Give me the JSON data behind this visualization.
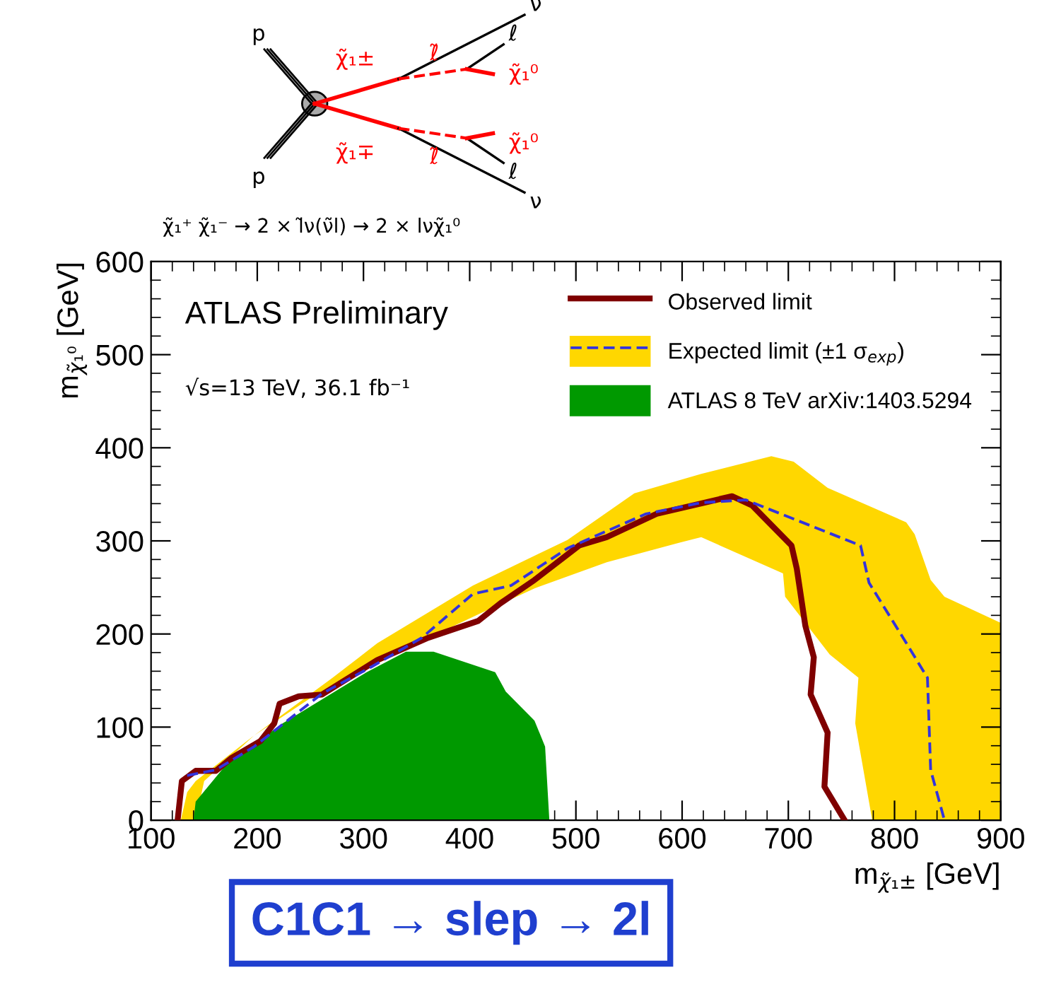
{
  "chart_data": {
    "type": "line",
    "xlabel": "m$_{χ̃₁±}$ [GeV]",
    "ylabel": "m$_{χ̃₁⁰}$ [GeV]",
    "xlim": [
      100,
      900
    ],
    "xticks": [
      100,
      200,
      300,
      400,
      500,
      600,
      700,
      800,
      900
    ],
    "ylim": [
      0,
      600
    ],
    "yticks": [
      0,
      100,
      200,
      300,
      400,
      500,
      600
    ],
    "legend": "top right",
    "grid": false,
    "series": [
      {
        "type": "area",
        "color": "#ffd700",
        "x": [
          128,
          134,
          142,
          197,
          271,
          313,
          403,
          492,
          555,
          618,
          684,
          705,
          737,
          811,
          819,
          834,
          847,
          900,
          900,
          779,
          763,
          766,
          739,
          697,
          695,
          618,
          597,
          529,
          461,
          408,
          345,
          250,
          197,
          150,
          142
        ],
        "values": [
          0,
          30,
          42,
          91,
          153,
          190,
          252,
          301,
          351,
          372,
          391,
          385,
          357,
          320,
          307,
          258,
          240,
          212,
          0,
          0,
          104,
          153,
          178,
          240,
          265,
          304,
          298,
          277,
          249,
          221,
          187,
          131,
          91,
          42,
          0
        ]
      },
      {
        "type": "area",
        "name": "ATLAS 8 TeV arXiv:1403.5294",
        "color": "#009900",
        "x": [
          140,
          142,
          171,
          224,
          303,
          340,
          366,
          408,
          424,
          434,
          461,
          471,
          475
        ],
        "values": [
          0,
          20,
          60,
          104,
          159,
          181,
          181,
          165,
          159,
          138,
          107,
          79,
          0
        ]
      },
      {
        "name": "Expected limit (±1 σ$_{exp}$)",
        "color": "#3333dd",
        "line_style": "dashed",
        "x": [
          134,
          161,
          197,
          261,
          308,
          355,
          403,
          439,
          492,
          566,
          618,
          660,
          768,
          776,
          808,
          831,
          834,
          847
        ],
        "values": [
          48,
          54,
          79,
          136,
          165,
          196,
          243,
          252,
          292,
          329,
          341,
          344,
          295,
          255,
          196,
          153,
          54,
          0
        ]
      },
      {
        "name": "Observed limit",
        "color": "#7f0000",
        "line_style": "solid",
        "x": [
          125,
          129,
          142,
          161,
          176,
          203,
          216,
          221,
          239,
          261,
          313,
          361,
          408,
          429,
          461,
          503,
          529,
          576,
          647,
          666,
          703,
          708,
          716,
          724,
          721,
          737,
          734,
          753
        ],
        "values": [
          0,
          42,
          53,
          53,
          67,
          85,
          104,
          125,
          133,
          135,
          172,
          196,
          214,
          233,
          258,
          295,
          304,
          329,
          348,
          338,
          295,
          270,
          209,
          175,
          135,
          94,
          36,
          0
        ]
      }
    ],
    "annotations": [
      "ATLAS Preliminary",
      "√s=13 TeV, 36.1 fb⁻¹",
      "C1C1 → slep → 2l",
      "χ̃₁⁺ χ̃₁⁻ → 2 × l̃ν(ν̃l) → 2 × lνχ̃₁⁰",
      "p",
      "p",
      "ν",
      "ℓ",
      "ℓ",
      "ν",
      "χ̃₁±",
      "χ̃₁∓",
      "ℓ̃",
      "ℓ̃",
      "χ̃₁⁰",
      "χ̃₁⁰"
    ]
  }
}
